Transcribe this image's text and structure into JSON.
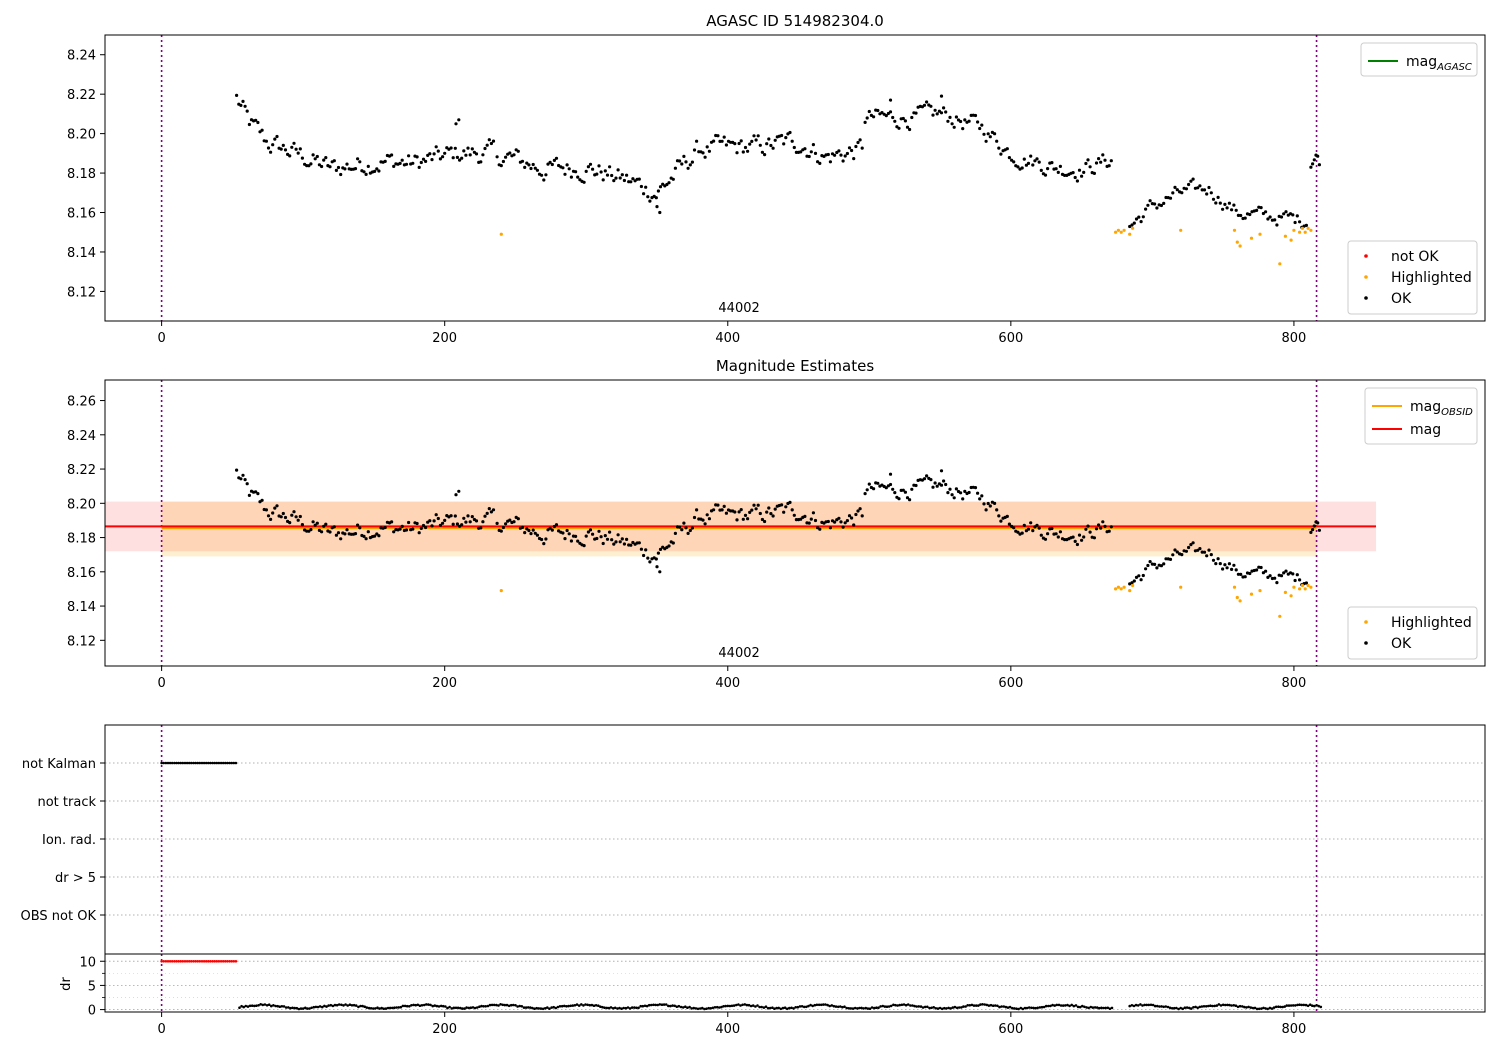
{
  "chart_data": [
    {
      "type": "scatter",
      "title": "AGASC ID 514982304.0",
      "xlim": [
        -40,
        935
      ],
      "ylim": [
        8.105,
        8.25
      ],
      "x_ticks": [
        0,
        200,
        400,
        600,
        800
      ],
      "y_ticks": [
        8.12,
        8.14,
        8.16,
        8.18,
        8.2,
        8.22,
        8.24
      ],
      "vlines": [
        0,
        816
      ],
      "obsid_label": {
        "text": "44002",
        "x": 408
      },
      "legend_lines": [
        {
          "label": "mag",
          "sub": "AGASC",
          "color": "#008000"
        }
      ],
      "legend_points": [
        {
          "label": "not OK",
          "color": "#ff0000"
        },
        {
          "label": "Highlighted",
          "color": "#ffa500"
        },
        {
          "label": "OK",
          "color": "#000000"
        }
      ],
      "highlighted": [
        [
          240,
          8.149
        ],
        [
          674,
          8.15
        ],
        [
          676,
          8.151
        ],
        [
          678,
          8.15
        ],
        [
          680,
          8.151
        ],
        [
          684,
          8.149
        ],
        [
          686,
          8.152
        ],
        [
          720,
          8.151
        ],
        [
          758,
          8.151
        ],
        [
          760,
          8.145
        ],
        [
          762,
          8.143
        ],
        [
          770,
          8.147
        ],
        [
          776,
          8.149
        ],
        [
          790,
          8.134
        ],
        [
          794,
          8.148
        ],
        [
          798,
          8.146
        ],
        [
          800,
          8.151
        ],
        [
          804,
          8.15
        ],
        [
          806,
          8.152
        ],
        [
          808,
          8.15
        ],
        [
          810,
          8.152
        ],
        [
          812,
          8.151
        ]
      ],
      "ok_segments": [
        {
          "x0": 53,
          "x1": 235,
          "step": 1.5,
          "amp": 0.007,
          "levels": [
            [
              53,
              8.218
            ],
            [
              62,
              8.205
            ],
            [
              75,
              8.195
            ],
            [
              95,
              8.19
            ],
            [
              120,
              8.182
            ],
            [
              150,
              8.186
            ],
            [
              180,
              8.185
            ],
            [
              210,
              8.19
            ],
            [
              235,
              8.19
            ]
          ]
        },
        {
          "x0": 237,
          "x1": 495,
          "step": 1.5,
          "amp": 0.007,
          "levels": [
            [
              237,
              8.19
            ],
            [
              270,
              8.182
            ],
            [
              300,
              8.183
            ],
            [
              330,
              8.176
            ],
            [
              350,
              8.17
            ],
            [
              380,
              8.192
            ],
            [
              420,
              8.193
            ],
            [
              450,
              8.196
            ],
            [
              470,
              8.188
            ],
            [
              495,
              8.192
            ]
          ]
        },
        {
          "x0": 497,
          "x1": 672,
          "step": 1.5,
          "amp": 0.006,
          "levels": [
            [
              497,
              8.208
            ],
            [
              530,
              8.208
            ],
            [
              550,
              8.21
            ],
            [
              580,
              8.203
            ],
            [
              600,
              8.19
            ],
            [
              630,
              8.183
            ],
            [
              650,
              8.182
            ],
            [
              672,
              8.187
            ]
          ]
        },
        {
          "x0": 684,
          "x1": 810,
          "step": 1.6,
          "amp": 0.005,
          "levels": [
            [
              684,
              8.153
            ],
            [
              700,
              8.163
            ],
            [
              720,
              8.17
            ],
            [
              740,
              8.172
            ],
            [
              760,
              8.16
            ],
            [
              780,
              8.158
            ],
            [
              810,
              8.156
            ]
          ]
        },
        {
          "x0": 812,
          "x1": 819,
          "step": 1.2,
          "amp": 0.004,
          "levels": [
            [
              812,
              8.185
            ],
            [
              816,
              8.19
            ],
            [
              819,
              8.18
            ]
          ]
        }
      ],
      "ok_extra": [
        [
          352,
          8.16
        ],
        [
          350,
          8.163
        ],
        [
          208,
          8.205
        ],
        [
          210,
          8.207
        ],
        [
          551,
          8.219
        ],
        [
          515,
          8.217
        ]
      ]
    },
    {
      "type": "scatter",
      "title": "Magnitude Estimates",
      "xlim": [
        -40,
        935
      ],
      "ylim": [
        8.105,
        8.272
      ],
      "x_ticks": [
        0,
        200,
        400,
        600,
        800
      ],
      "y_ticks": [
        8.12,
        8.14,
        8.16,
        8.18,
        8.2,
        8.22,
        8.24,
        8.26
      ],
      "vlines": [
        0,
        816
      ],
      "obsid_label": {
        "text": "44002",
        "x": 408
      },
      "legend_lines": [
        {
          "label": "mag",
          "sub": "OBSID",
          "color": "#ffa500"
        },
        {
          "label": "mag",
          "sub": "",
          "color": "#ff0000"
        }
      ],
      "legend_points": [
        {
          "label": "Highlighted",
          "color": "#ffa500"
        },
        {
          "label": "OK",
          "color": "#000000"
        }
      ],
      "mag": 8.1865,
      "mag_band": [
        8.172,
        8.201
      ],
      "mag_band_x": [
        -40,
        858
      ],
      "mag_obsid": 8.1855,
      "mag_obsid_band": [
        8.169,
        8.201
      ],
      "mag_obsid_band_x": [
        0,
        816
      ],
      "same_points_as_panel": 0
    },
    {
      "type": "scatter",
      "title": "",
      "xlim": [
        -40,
        935
      ],
      "x_ticks": [
        0,
        200,
        400,
        600,
        800
      ],
      "vlines": [
        0,
        816
      ],
      "flag_categories": [
        "not Kalman",
        "not track",
        "Ion. rad.",
        "dr > 5",
        "OBS not OK"
      ],
      "flag_ranges": [
        {
          "category": "not Kalman",
          "x0": 0,
          "x1": 53,
          "step": 1.5
        }
      ],
      "dr": {
        "ylabel": "dr",
        "ylim": [
          -0.5,
          11.5
        ],
        "y_ticks": [
          0,
          5,
          10
        ],
        "clipped_value": 10,
        "clipped_range": [
          0,
          53
        ],
        "segments": [
          [
            55,
            672
          ],
          [
            684,
            819
          ]
        ],
        "level": 0.6
      }
    }
  ]
}
